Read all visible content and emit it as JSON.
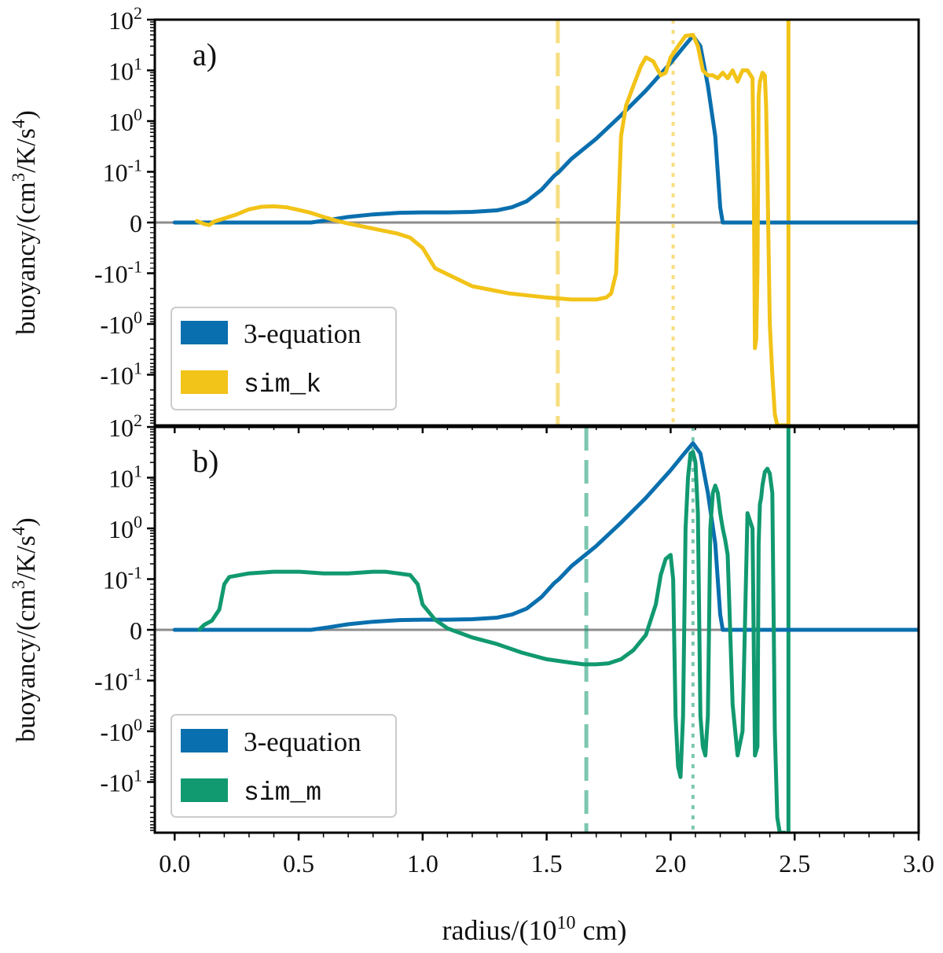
{
  "figure": {
    "xlabel_prefix": "radius/(10",
    "xlabel_sup": "10",
    "xlabel_suffix": " cm)",
    "xticks": [
      "0.0",
      "0.5",
      "1.0",
      "1.5",
      "2.0",
      "2.5",
      "3.0"
    ],
    "ylabel_prefix": "buoyancy/(cm",
    "ylabel_sup1": "3",
    "ylabel_mid": "/K/s",
    "ylabel_sup2": "4",
    "ylabel_suffix": ")"
  },
  "chart_data": [
    {
      "type": "line",
      "panel_label": "a)",
      "yscale": "symlog",
      "xlim": [
        -0.08,
        3.0
      ],
      "ylim": [
        -100,
        100
      ],
      "linthresh": 0.1,
      "ytick_labels": [
        {
          "base": "10",
          "exp": "2",
          "value": 100
        },
        {
          "base": "10",
          "exp": "1",
          "value": 10
        },
        {
          "base": "10",
          "exp": "0",
          "value": 1
        },
        {
          "base": "10",
          "exp": "-1",
          "value": 0.1
        },
        {
          "base": "0",
          "exp": "",
          "value": 0
        },
        {
          "base": "-10",
          "exp": "-1",
          "value": -0.1
        },
        {
          "base": "-10",
          "exp": "0",
          "value": -1
        },
        {
          "base": "-10",
          "exp": "1",
          "value": -10
        }
      ],
      "legend": {
        "position": "lower-left",
        "entries": [
          "3-equation",
          "sim_k"
        ]
      },
      "series": [
        {
          "name": "3-equation",
          "color": "#0a6fae",
          "x": [
            0,
            0.55,
            0.62,
            0.7,
            0.8,
            0.9,
            1.0,
            1.1,
            1.2,
            1.3,
            1.36,
            1.42,
            1.48,
            1.53,
            1.55,
            1.6,
            1.7,
            1.8,
            1.9,
            2.0,
            2.05,
            2.09,
            2.12,
            2.15,
            2.18,
            2.2,
            2.21,
            3.0
          ],
          "y": [
            0,
            0,
            0.005,
            0.011,
            0.016,
            0.019,
            0.02,
            0.02,
            0.021,
            0.024,
            0.03,
            0.042,
            0.065,
            0.092,
            0.1,
            0.18,
            0.45,
            1.3,
            4,
            14,
            28,
            48,
            30,
            5,
            0.5,
            0.03,
            0,
            0
          ]
        },
        {
          "name": "sim_k",
          "color": "#f2c318",
          "x": [
            0.09,
            0.1,
            0.12,
            0.14,
            0.16,
            0.2,
            0.25,
            0.3,
            0.35,
            0.4,
            0.45,
            0.5,
            0.55,
            0.6,
            0.65,
            0.7,
            0.8,
            0.9,
            0.95,
            1.0,
            1.05,
            1.2,
            1.35,
            1.5,
            1.6,
            1.7,
            1.74,
            1.76,
            1.78,
            1.8,
            1.82,
            1.85,
            1.88,
            1.9,
            1.93,
            1.96,
            1.98,
            2.0,
            2.03,
            2.06,
            2.09,
            2.11,
            2.13,
            2.15,
            2.17,
            2.19,
            2.21,
            2.23,
            2.25,
            2.27,
            2.29,
            2.31,
            2.33,
            2.335,
            2.34,
            2.345,
            2.35,
            2.355,
            2.36,
            2.37,
            2.38,
            2.385,
            2.39,
            2.4,
            2.41,
            2.42,
            2.43,
            2.44,
            2.45,
            2.46,
            2.465
          ],
          "y": [
            0.003,
            0.001,
            -0.003,
            -0.005,
            0.002,
            0.008,
            0.016,
            0.026,
            0.031,
            0.032,
            0.03,
            0.025,
            0.019,
            0.011,
            0.004,
            -0.002,
            -0.012,
            -0.022,
            -0.03,
            -0.05,
            -0.09,
            -0.18,
            -0.25,
            -0.3,
            -0.33,
            -0.33,
            -0.3,
            -0.25,
            -0.1,
            0.5,
            2,
            5,
            12,
            18,
            15,
            8,
            9,
            18,
            30,
            48,
            50,
            30,
            10,
            8,
            8,
            7,
            9,
            7,
            10,
            6,
            10,
            10,
            7,
            0.1,
            -3,
            -2,
            -0.1,
            3,
            6,
            9,
            8,
            2,
            0.1,
            -1,
            -10,
            -60,
            -100,
            -100,
            -100,
            -100,
            -100
          ]
        }
      ],
      "vlines": [
        {
          "x": 1.545,
          "style": "dashed",
          "color": "#f2c318"
        },
        {
          "x": 2.01,
          "style": "dotted",
          "color": "#f2c318"
        },
        {
          "x": 2.475,
          "style": "solid",
          "color": "#f2c318"
        }
      ]
    },
    {
      "type": "line",
      "panel_label": "b)",
      "yscale": "symlog",
      "xlim": [
        -0.08,
        3.0
      ],
      "ylim": [
        -100,
        100
      ],
      "linthresh": 0.1,
      "ytick_labels": [
        {
          "base": "10",
          "exp": "2",
          "value": 100
        },
        {
          "base": "10",
          "exp": "1",
          "value": 10
        },
        {
          "base": "10",
          "exp": "0",
          "value": 1
        },
        {
          "base": "10",
          "exp": "-1",
          "value": 0.1
        },
        {
          "base": "0",
          "exp": "",
          "value": 0
        },
        {
          "base": "-10",
          "exp": "-1",
          "value": -0.1
        },
        {
          "base": "-10",
          "exp": "0",
          "value": -1
        },
        {
          "base": "-10",
          "exp": "1",
          "value": -10
        }
      ],
      "legend": {
        "position": "lower-left",
        "entries": [
          "3-equation",
          "sim_m"
        ]
      },
      "series": [
        {
          "name": "3-equation",
          "color": "#0a6fae",
          "x": [
            0,
            0.55,
            0.62,
            0.7,
            0.8,
            0.9,
            1.0,
            1.1,
            1.2,
            1.3,
            1.36,
            1.42,
            1.48,
            1.53,
            1.55,
            1.6,
            1.7,
            1.8,
            1.9,
            2.0,
            2.05,
            2.09,
            2.12,
            2.15,
            2.18,
            2.2,
            2.21,
            3.0
          ],
          "y": [
            0,
            0,
            0.005,
            0.011,
            0.016,
            0.019,
            0.02,
            0.02,
            0.021,
            0.024,
            0.03,
            0.042,
            0.065,
            0.092,
            0.1,
            0.18,
            0.45,
            1.3,
            4,
            14,
            28,
            48,
            30,
            5,
            0.5,
            0.03,
            0,
            0
          ]
        },
        {
          "name": "sim_m",
          "color": "#11996f",
          "x": [
            0.1,
            0.12,
            0.15,
            0.18,
            0.2,
            0.22,
            0.3,
            0.4,
            0.5,
            0.6,
            0.7,
            0.8,
            0.85,
            0.9,
            0.95,
            0.98,
            1.0,
            1.05,
            1.1,
            1.2,
            1.3,
            1.4,
            1.5,
            1.6,
            1.65,
            1.7,
            1.75,
            1.8,
            1.85,
            1.9,
            1.94,
            1.96,
            1.98,
            2.0,
            2.01,
            2.02,
            2.03,
            2.04,
            2.05,
            2.06,
            2.07,
            2.08,
            2.09,
            2.1,
            2.11,
            2.12,
            2.13,
            2.14,
            2.15,
            2.16,
            2.17,
            2.18,
            2.19,
            2.2,
            2.21,
            2.22,
            2.23,
            2.25,
            2.27,
            2.29,
            2.31,
            2.33,
            2.34,
            2.35,
            2.355,
            2.36,
            2.365,
            2.37,
            2.38,
            2.39,
            2.4,
            2.41,
            2.42,
            2.43,
            2.44,
            2.45,
            2.46
          ],
          "y": [
            0.001,
            0.01,
            0.018,
            0.04,
            0.09,
            0.11,
            0.13,
            0.14,
            0.14,
            0.13,
            0.13,
            0.14,
            0.14,
            0.13,
            0.12,
            0.09,
            0.05,
            0.02,
            0.003,
            -0.015,
            -0.028,
            -0.045,
            -0.058,
            -0.065,
            -0.068,
            -0.068,
            -0.066,
            -0.058,
            -0.04,
            -0.01,
            0.05,
            0.12,
            0.25,
            0.3,
            0.1,
            -0.5,
            -5,
            -8,
            -0.5,
            1,
            10,
            30,
            32,
            20,
            2,
            -0.5,
            -2,
            -3,
            -0.5,
            1,
            5,
            7,
            5,
            2,
            1,
            0.6,
            0.3,
            -0.3,
            -3,
            -1,
            2,
            1,
            -3,
            -2,
            0.5,
            3,
            4,
            7,
            13,
            15,
            12,
            5,
            -1,
            -50,
            -100,
            -100,
            -100
          ]
        }
      ],
      "vlines": [
        {
          "x": 1.66,
          "style": "dashed",
          "color": "#11996f"
        },
        {
          "x": 2.09,
          "style": "dotted",
          "color": "#11996f"
        },
        {
          "x": 2.475,
          "style": "solid",
          "color": "#11996f"
        }
      ]
    }
  ]
}
